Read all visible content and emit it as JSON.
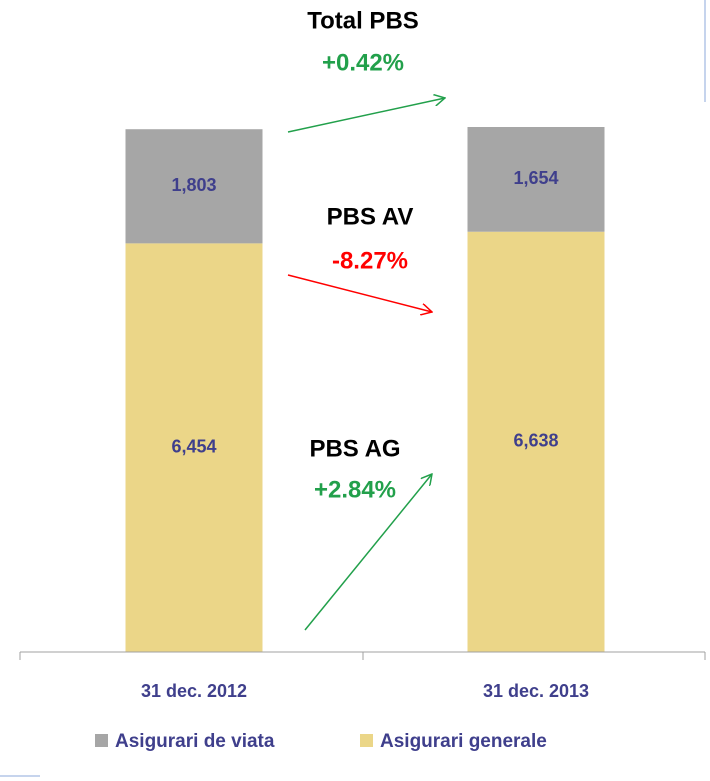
{
  "chart_data": {
    "type": "stacked_bar",
    "categories": [
      "31 dec. 2012",
      "31 dec. 2013"
    ],
    "series": [
      {
        "name": "Asigurari de viata",
        "color": "#a6a6a6",
        "values": [
          1803,
          1654
        ],
        "value_labels": [
          "1,803",
          "1,654"
        ]
      },
      {
        "name": "Asigurari generale",
        "color": "#ebd688",
        "values": [
          6454,
          6638
        ],
        "value_labels": [
          "6,454",
          "6,638"
        ]
      }
    ],
    "annotations": [
      {
        "text": "Total PBS",
        "change": "+0.42%",
        "color": "#22a04b"
      },
      {
        "text": "PBS AV",
        "change": "-8.27%",
        "color": "#ff0000"
      },
      {
        "text": "PBS AG",
        "change": "+2.84%",
        "color": "#22a04b"
      }
    ],
    "legend": "bottom"
  }
}
